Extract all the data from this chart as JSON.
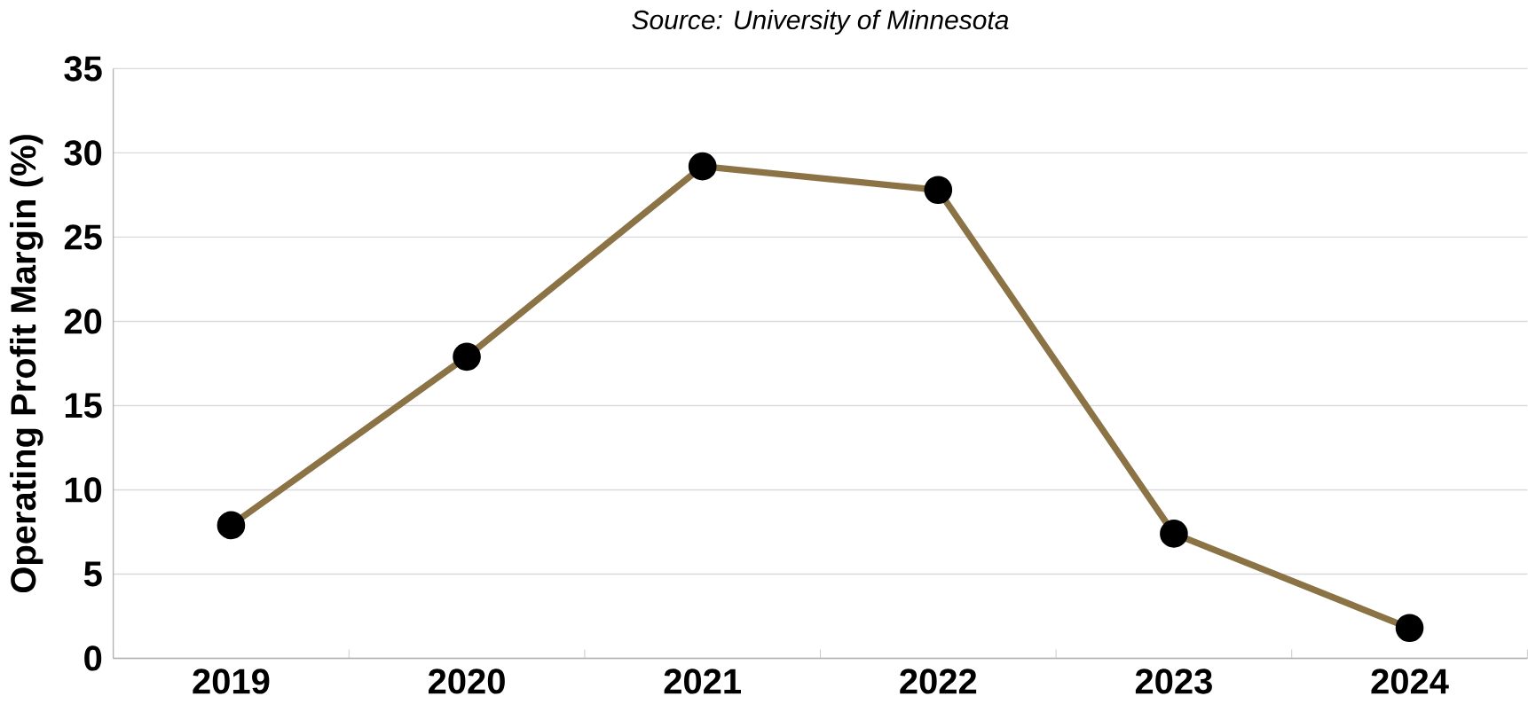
{
  "chart_data": {
    "type": "line",
    "annotations": [
      "Source: University of Minnesota"
    ],
    "ylabel": "Operating Profit Margin (%)",
    "categories": [
      "2019",
      "2020",
      "2021",
      "2022",
      "2023",
      "2024"
    ],
    "series": [
      {
        "color": "#8b7346",
        "values": [
          7.9,
          17.9,
          29.2,
          27.8,
          7.4,
          1.8
        ]
      }
    ],
    "ylim": [
      0,
      35
    ],
    "yticks": [
      0,
      5,
      10,
      15,
      20,
      25,
      30,
      35
    ],
    "grid": "y",
    "marker": "circle",
    "line_style": "solid"
  }
}
